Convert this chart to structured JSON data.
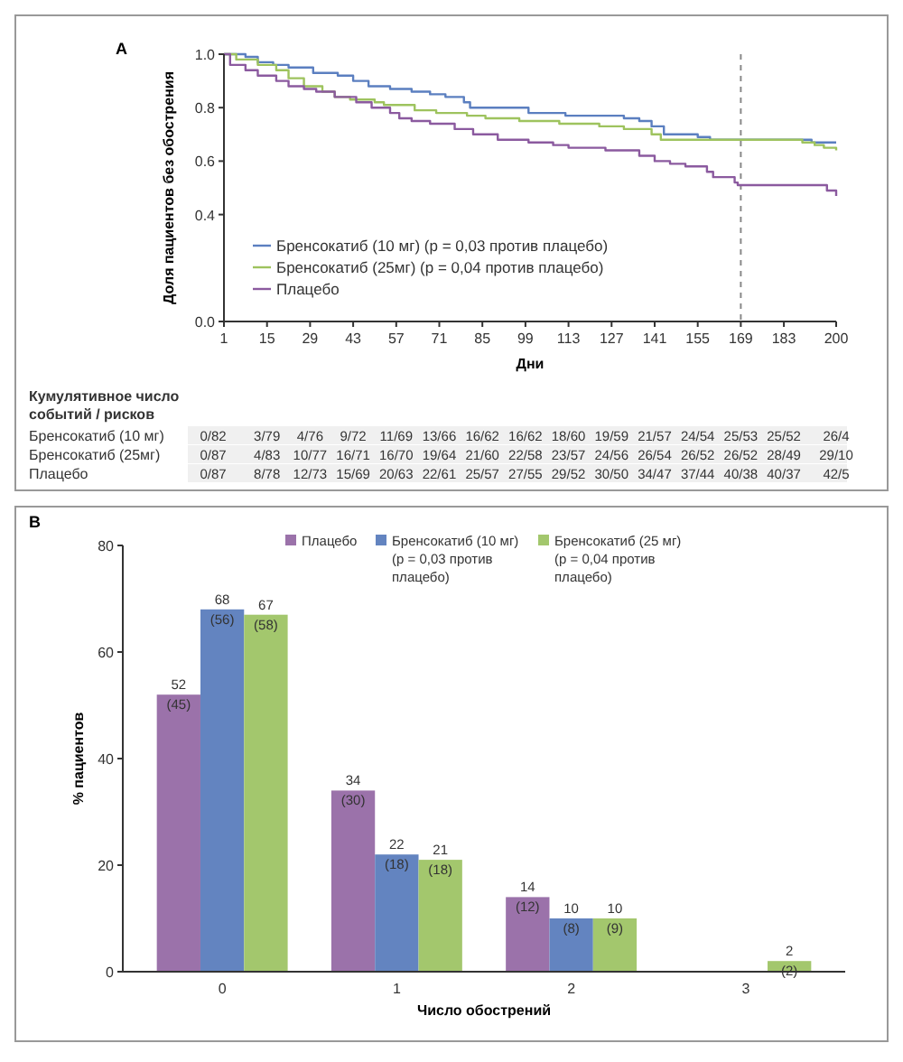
{
  "chart_data": [
    {
      "type": "step",
      "title": "A",
      "xlabel": "Дни",
      "ylabel": "Доля пациентов без обострения",
      "xlim": [
        1,
        200
      ],
      "xticks": [
        1,
        15,
        29,
        43,
        57,
        71,
        85,
        99,
        113,
        127,
        141,
        155,
        169,
        183,
        200
      ],
      "ylim": [
        0,
        1.0
      ],
      "yticks": [
        {
          "value": 0,
          "label": "0.0"
        },
        0.4,
        0.6,
        0.8,
        {
          "value": 1,
          "label": "1.0"
        }
      ],
      "legend": "bottom left",
      "grid": false,
      "ref_lines": [
        {
          "axis": "x",
          "value": 169,
          "label": null,
          "color": "#888888",
          "line_style": "dashed"
        }
      ],
      "series": [
        {
          "name": "Бренсокатиб (10 мг) (p = 0,03 против плацебо)",
          "color": "#5b7fc0",
          "x": [
            1,
            8,
            12,
            17,
            22,
            30,
            38,
            43,
            48,
            55,
            62,
            68,
            73,
            79,
            81,
            100,
            112,
            131,
            136,
            140,
            144,
            155,
            159,
            192,
            200
          ],
          "values": [
            1.0,
            0.99,
            0.97,
            0.96,
            0.95,
            0.93,
            0.92,
            0.9,
            0.88,
            0.87,
            0.86,
            0.85,
            0.84,
            0.82,
            0.8,
            0.78,
            0.77,
            0.76,
            0.75,
            0.73,
            0.7,
            0.69,
            0.68,
            0.67,
            0.67
          ]
        },
        {
          "name": "Бренсокатиб (25мг) (p = 0,04 против плацебо)",
          "color": "#9ec35e",
          "x": [
            1,
            5,
            12,
            18,
            22,
            27,
            33,
            37,
            42,
            50,
            53,
            63,
            70,
            80,
            86,
            97,
            110,
            123,
            131,
            140,
            143,
            185,
            189,
            193,
            196,
            200
          ],
          "values": [
            1.0,
            0.98,
            0.96,
            0.94,
            0.91,
            0.88,
            0.86,
            0.84,
            0.83,
            0.82,
            0.81,
            0.79,
            0.78,
            0.77,
            0.76,
            0.75,
            0.74,
            0.73,
            0.72,
            0.7,
            0.68,
            0.68,
            0.67,
            0.66,
            0.65,
            0.64
          ]
        },
        {
          "name": "Плацебо",
          "color": "#8b5a9f",
          "x": [
            1,
            3,
            8,
            12,
            18,
            22,
            27,
            31,
            37,
            44,
            49,
            55,
            58,
            62,
            68,
            76,
            82,
            90,
            100,
            108,
            113,
            125,
            136,
            141,
            146,
            151,
            158,
            160,
            167,
            168,
            195,
            197,
            200
          ],
          "values": [
            1.0,
            0.96,
            0.94,
            0.92,
            0.9,
            0.88,
            0.87,
            0.86,
            0.84,
            0.82,
            0.8,
            0.78,
            0.76,
            0.75,
            0.74,
            0.72,
            0.7,
            0.68,
            0.67,
            0.66,
            0.65,
            0.64,
            0.62,
            0.6,
            0.59,
            0.58,
            0.56,
            0.54,
            0.52,
            0.51,
            0.51,
            0.49,
            0.47
          ]
        }
      ],
      "annotations": [
        "Кумулятивное число событий / рисков",
        "Бренсокатиб (10 мг)",
        "0/82",
        "3/79",
        "4/76",
        "9/72",
        "11/69",
        "13/66",
        "16/62",
        "16/62",
        "18/60",
        "19/59",
        "21/57",
        "24/54",
        "25/53",
        "25/52",
        "26/4",
        "Бренсокатиб (25мг)",
        "0/87",
        "4/83",
        "10/77",
        "16/71",
        "16/70",
        "19/64",
        "21/60",
        "22/58",
        "23/57",
        "24/56",
        "26/54",
        "26/52",
        "26/52",
        "28/49",
        "29/10",
        "Плацебо",
        "0/87",
        "8/78",
        "12/73",
        "15/69",
        "20/63",
        "22/61",
        "25/57",
        "27/55",
        "29/52",
        "30/50",
        "34/47",
        "37/44",
        "40/38",
        "40/37",
        "42/5"
      ]
    },
    {
      "type": "bar",
      "title": "B",
      "xlabel": "Число обострений",
      "ylabel": "% пациентов",
      "categories": [
        "0",
        "1",
        "2",
        "3"
      ],
      "ylim": [
        0,
        80
      ],
      "yticks": [
        0,
        20,
        40,
        60,
        80
      ],
      "legend": "top",
      "grid": false,
      "series": [
        {
          "name": "Плацебо",
          "color": "#9b72aa",
          "values": [
            52,
            34,
            14,
            null
          ],
          "value_labels": [
            "52 (45)",
            "34 (30)",
            "14 (12)",
            null
          ]
        },
        {
          "name": "Бренсокатиб (10 мг) (p = 0,03 против плацебо)",
          "color": "#6384c0",
          "values": [
            68,
            22,
            10,
            null
          ],
          "value_labels": [
            "68 (56)",
            "22 (18)",
            "10 (8)",
            null
          ]
        },
        {
          "name": "Бренсокатиб (25 мг) (p = 0,04 против плацебо)",
          "color": "#a3c76d",
          "values": [
            67,
            21,
            10,
            2
          ],
          "value_labels": [
            "67 (58)",
            "21 (18)",
            "10 (9)",
            "2 (2)"
          ]
        }
      ]
    }
  ]
}
